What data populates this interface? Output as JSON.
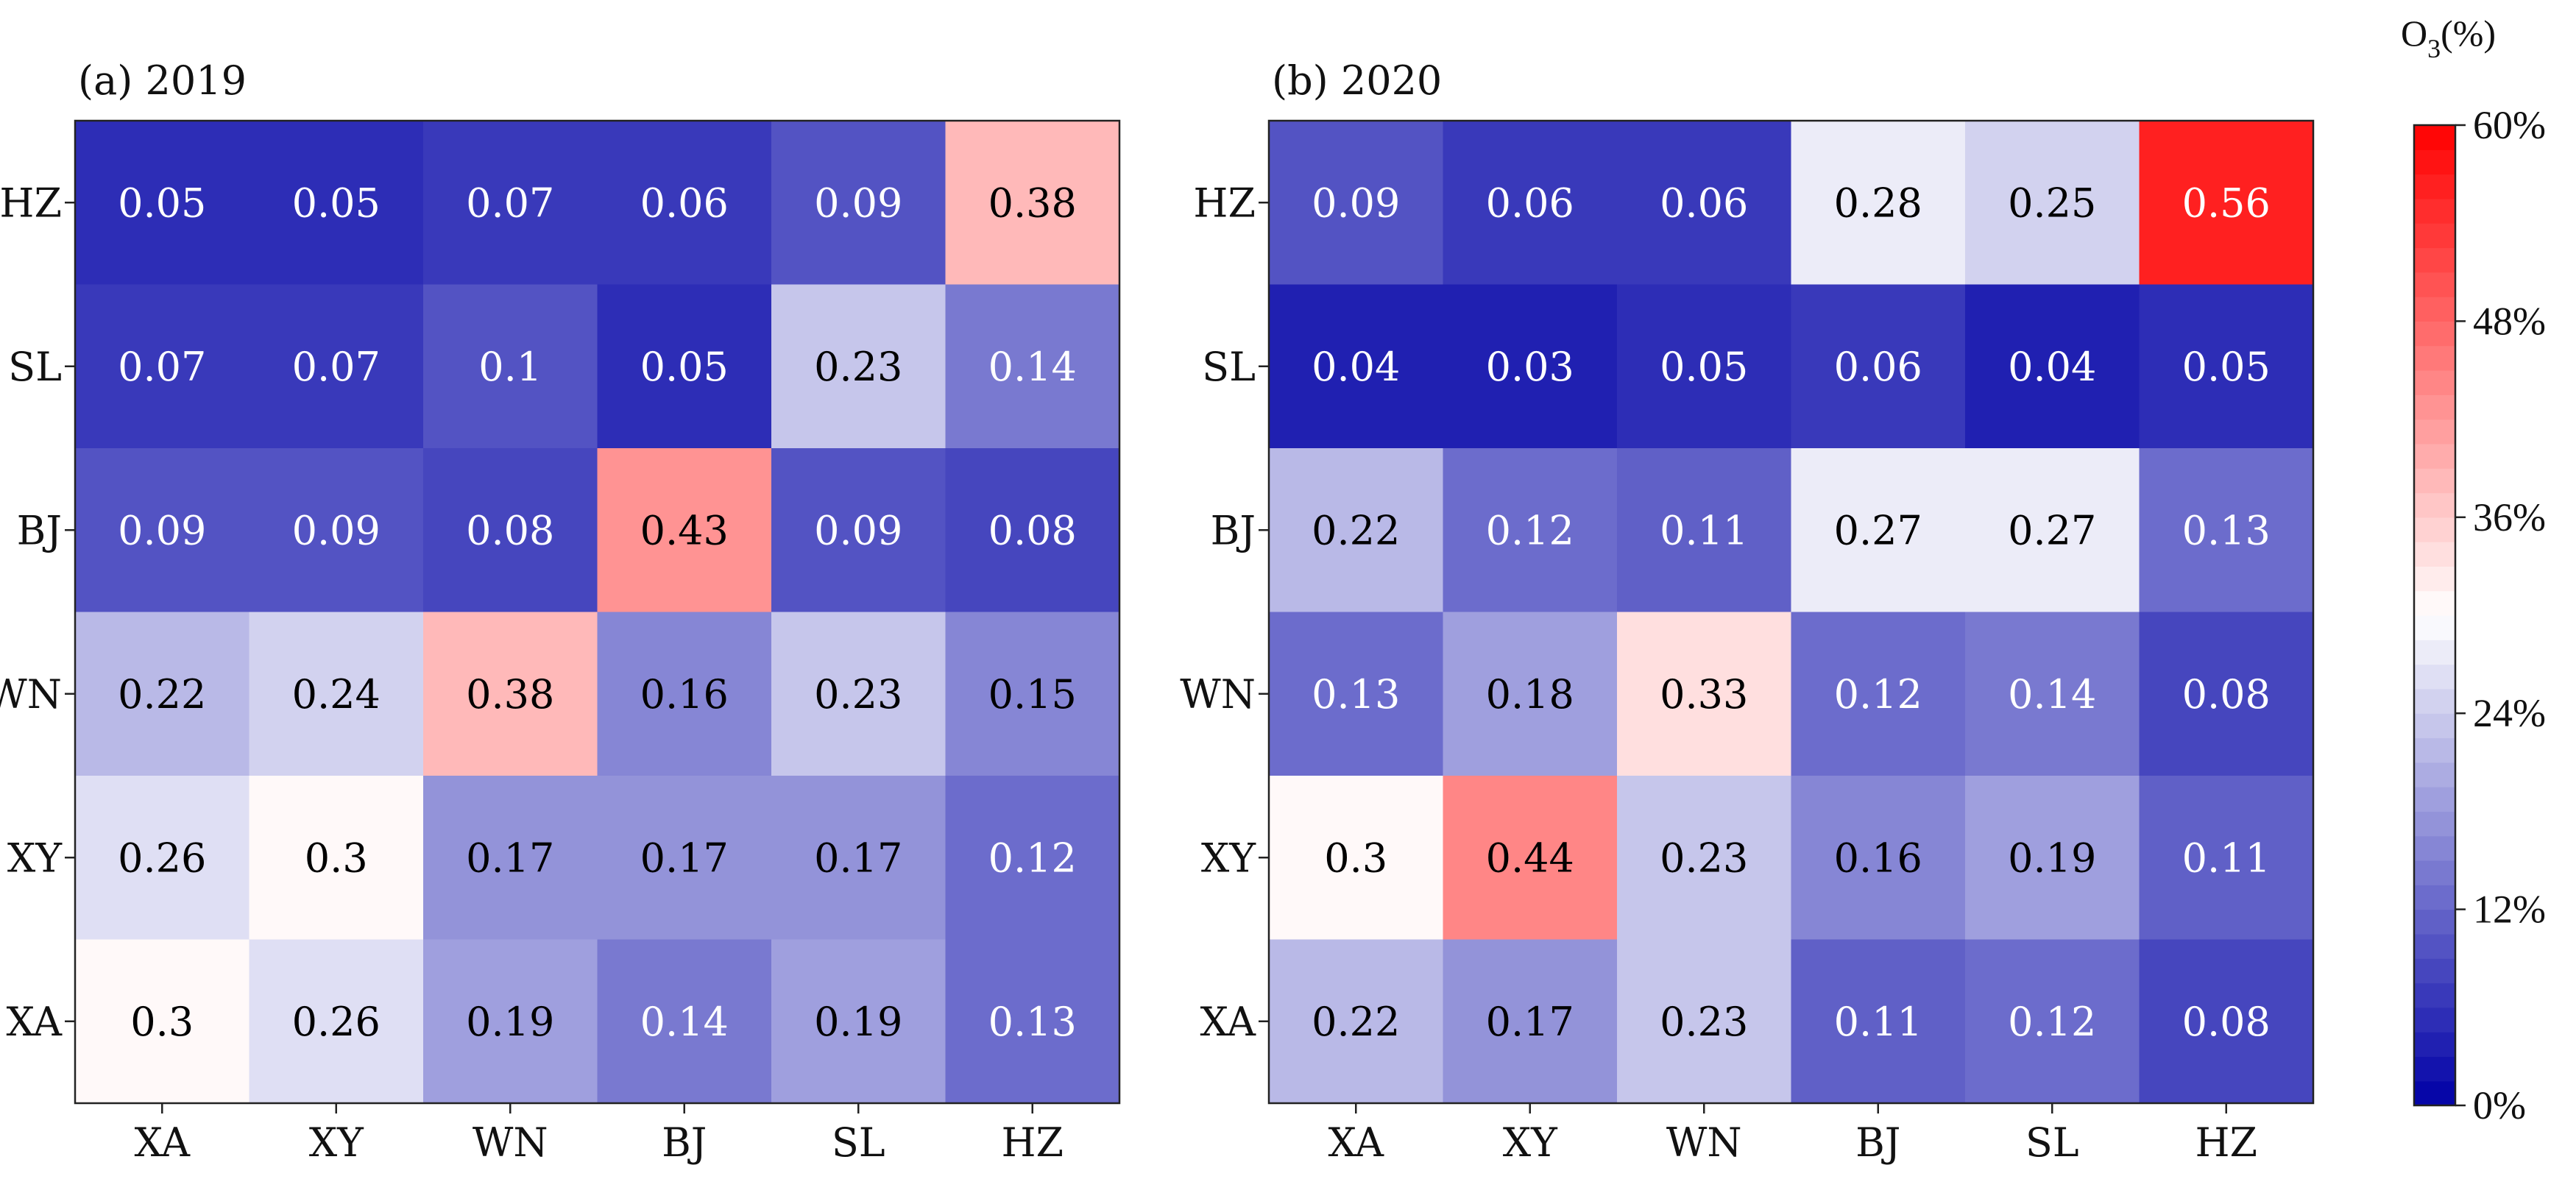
{
  "chart_data": [
    {
      "type": "heatmap",
      "title": "(a) 2019",
      "x_categories": [
        "XA",
        "XY",
        "WN",
        "BJ",
        "SL",
        "HZ"
      ],
      "y_categories": [
        "HZ",
        "SL",
        "BJ",
        "WN",
        "XY",
        "XA"
      ],
      "values": [
        [
          0.05,
          0.05,
          0.07,
          0.06,
          0.09,
          0.38
        ],
        [
          0.07,
          0.07,
          0.1,
          0.05,
          0.23,
          0.14
        ],
        [
          0.09,
          0.09,
          0.08,
          0.43,
          0.09,
          0.08
        ],
        [
          0.22,
          0.24,
          0.38,
          0.16,
          0.23,
          0.15
        ],
        [
          0.26,
          0.3,
          0.17,
          0.17,
          0.17,
          0.12
        ],
        [
          0.3,
          0.26,
          0.19,
          0.14,
          0.19,
          0.13
        ]
      ],
      "labels": [
        [
          "0.05",
          "0.05",
          "0.07",
          "0.06",
          "0.09",
          "0.38"
        ],
        [
          "0.07",
          "0.07",
          "0.1",
          "0.05",
          "0.23",
          "0.14"
        ],
        [
          "0.09",
          "0.09",
          "0.08",
          "0.43",
          "0.09",
          "0.08"
        ],
        [
          "0.22",
          "0.24",
          "0.38",
          "0.16",
          "0.23",
          "0.15"
        ],
        [
          "0.26",
          "0.3",
          "0.17",
          "0.17",
          "0.17",
          "0.12"
        ],
        [
          "0.3",
          "0.26",
          "0.19",
          "0.14",
          "0.19",
          "0.13"
        ]
      ]
    },
    {
      "type": "heatmap",
      "title": "(b) 2020",
      "x_categories": [
        "XA",
        "XY",
        "WN",
        "BJ",
        "SL",
        "HZ"
      ],
      "y_categories": [
        "HZ",
        "SL",
        "BJ",
        "WN",
        "XY",
        "XA"
      ],
      "values": [
        [
          0.09,
          0.06,
          0.06,
          0.28,
          0.25,
          0.56
        ],
        [
          0.04,
          0.03,
          0.05,
          0.06,
          0.04,
          0.05
        ],
        [
          0.22,
          0.12,
          0.11,
          0.27,
          0.27,
          0.13
        ],
        [
          0.13,
          0.18,
          0.33,
          0.12,
          0.14,
          0.08
        ],
        [
          0.3,
          0.44,
          0.23,
          0.16,
          0.19,
          0.11
        ],
        [
          0.22,
          0.17,
          0.23,
          0.11,
          0.12,
          0.08
        ]
      ],
      "labels": [
        [
          "0.09",
          "0.06",
          "0.06",
          "0.28",
          "0.25",
          "0.56"
        ],
        [
          "0.04",
          "0.03",
          "0.05",
          "0.06",
          "0.04",
          "0.05"
        ],
        [
          "0.22",
          "0.12",
          "0.11",
          "0.27",
          "0.27",
          "0.13"
        ],
        [
          "0.13",
          "0.18",
          "0.33",
          "0.12",
          "0.14",
          "0.08"
        ],
        [
          "0.3",
          "0.44",
          "0.23",
          "0.16",
          "0.19",
          "0.11"
        ],
        [
          "0.22",
          "0.17",
          "0.23",
          "0.11",
          "0.12",
          "0.08"
        ]
      ]
    }
  ],
  "colorbar": {
    "title_main": "O",
    "title_sub": "3",
    "title_unit": "(%)",
    "min": 0,
    "max": 0.6,
    "mid": 0.3,
    "ticks": [
      0,
      0.12,
      0.24,
      0.36,
      0.48,
      0.6
    ],
    "tick_labels": [
      "0%",
      "12%",
      "24%",
      "36%",
      "48%",
      "60%"
    ],
    "low_color": "#0000a6",
    "mid_color": "#ffffff",
    "high_color": "#ff0000",
    "levels": 40
  }
}
